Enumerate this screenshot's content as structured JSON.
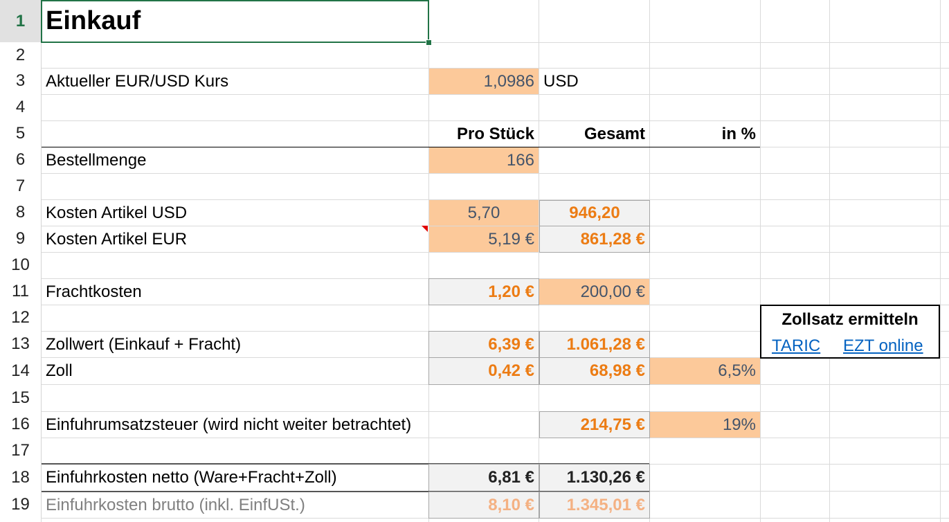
{
  "title": "Einkauf",
  "rows": [
    "1",
    "2",
    "3",
    "4",
    "5",
    "6",
    "7",
    "8",
    "9",
    "10",
    "11",
    "12",
    "13",
    "14",
    "15",
    "16",
    "17",
    "18",
    "19"
  ],
  "rate": {
    "label": "Aktueller EUR/USD Kurs",
    "value": "1,0986",
    "unit": "USD"
  },
  "headers": {
    "pro_stueck": "Pro Stück",
    "gesamt": "Gesamt",
    "in_pct": "in %"
  },
  "bestellmenge": {
    "label": "Bestellmenge",
    "value": "166"
  },
  "kosten_usd": {
    "label": "Kosten Artikel USD",
    "pro": "5,70",
    "gesamt": "946,20"
  },
  "kosten_eur": {
    "label": "Kosten Artikel EUR",
    "pro": "5,19 €",
    "gesamt": "861,28 €"
  },
  "fracht": {
    "label": "Frachtkosten",
    "pro": "1,20 €",
    "gesamt": "200,00 €"
  },
  "zollwert": {
    "label": "Zollwert (Einkauf + Fracht)",
    "pro": "6,39 €",
    "gesamt": "1.061,28 €"
  },
  "zoll": {
    "label": "Zoll",
    "pro": "0,42 €",
    "gesamt": "68,98 €",
    "pct": "6,5%"
  },
  "eust": {
    "label": "Einfuhrumsatzsteuer (wird nicht weiter betrachtet)",
    "gesamt": "214,75 €",
    "pct": "19%"
  },
  "netto": {
    "label": "Einfuhrkosten netto (Ware+Fracht+Zoll)",
    "pro": "6,81 €",
    "gesamt": "1.130,26 €"
  },
  "brutto": {
    "label": "Einfuhrkosten brutto (inkl. EinfUSt.)",
    "pro": "8,10 €",
    "gesamt": "1.345,01 €"
  },
  "zollsatz": {
    "title": "Zollsatz ermitteln",
    "link1": "TARIC",
    "link2": "EZT online"
  }
}
